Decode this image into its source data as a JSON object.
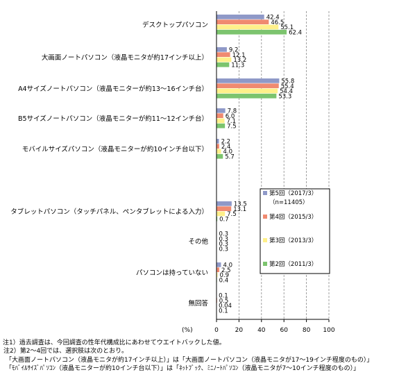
{
  "chart_data": {
    "type": "bar",
    "orientation": "horizontal",
    "xlim": [
      0,
      100
    ],
    "xticks": [
      0,
      20,
      40,
      60,
      80,
      100
    ],
    "unit_label": "(%)",
    "grid": "vertical dashed",
    "categories": [
      "デスクトップパソコン",
      "大画面ノートパソコン（液晶モニタが約17インチ以上）",
      "A4サイズノートパソコン（液晶モニターが約13〜16インチ台）",
      "B5サイズノートパソコン（液晶モニターが約11〜12インチ台）",
      "モバイルサイズパソコン（液晶モニターが約10インチ台以下）",
      "タブレットパソコン（タッチパネル、ペンタブレットによる入力）",
      "その他",
      "パソコンは持っていない",
      "無回答"
    ],
    "series": [
      {
        "name": "第5回（2017/3）",
        "sub": "（n=11405）",
        "color": "#8f99c8",
        "values": [
          42.4,
          9.2,
          55.8,
          7.8,
          2.2,
          13.5,
          0.3,
          4.0,
          0.1
        ],
        "labels": [
          "42.4",
          "9.2",
          "55.8",
          "7.8",
          "2.2",
          "13.5",
          "0.3",
          "4.0",
          "0.1"
        ]
      },
      {
        "name": "第4回（2015/3）",
        "color": "#f08a70",
        "values": [
          46.5,
          12.1,
          55.4,
          6.0,
          2.4,
          13.1,
          0.3,
          2.5,
          0.5
        ],
        "labels": [
          "46.5",
          "12.1",
          "55.4",
          "6.0",
          "2.4",
          "13.1",
          "0.3",
          "2.5",
          "0.5"
        ]
      },
      {
        "name": "第3回（2013/3）",
        "color": "#fff08a",
        "values": [
          55.1,
          13.2,
          54.4,
          7.1,
          4.0,
          7.5,
          0.3,
          0.9,
          0.04
        ],
        "labels": [
          "55.1",
          "13.2",
          "54.4",
          "7.1",
          "4.0",
          "7.5",
          "0.3",
          "0.9",
          "0.04"
        ]
      },
      {
        "name": "第2回（2011/3）",
        "color": "#7cc46e",
        "values": [
          62.4,
          11.3,
          53.3,
          7.5,
          5.7,
          0.7,
          0.3,
          0.4,
          0.1
        ],
        "labels": [
          "62.4",
          "11.3",
          "53.3",
          "7.5",
          "5.7",
          "0.7",
          "0.3",
          "0.4",
          "0.1"
        ]
      }
    ],
    "legend_position": "right-middle"
  },
  "notes": [
    "注1）過去調査は、今回調査の性年代構成比にあわせてウエイトバックした値。",
    "注2）第2〜4回では、選択肢は次のとおり。",
    "「大画面ノートパソコン（液晶モニタが約17インチ以上）」は「大画面ノートパソコン（液晶モニタが17〜19インチ程度のもの）」",
    "「ﾓﾊﾞｲﾙｻｲｽﾞﾊﾟｿｺﾝ（液晶モニターが約10インチ台以下）」は「ﾈｯﾄﾌﾞｯｸ、ﾐﾆﾉｰﾄﾊﾟｿｺﾝ（液晶モニタが7〜10インチ程度のもの）」"
  ]
}
